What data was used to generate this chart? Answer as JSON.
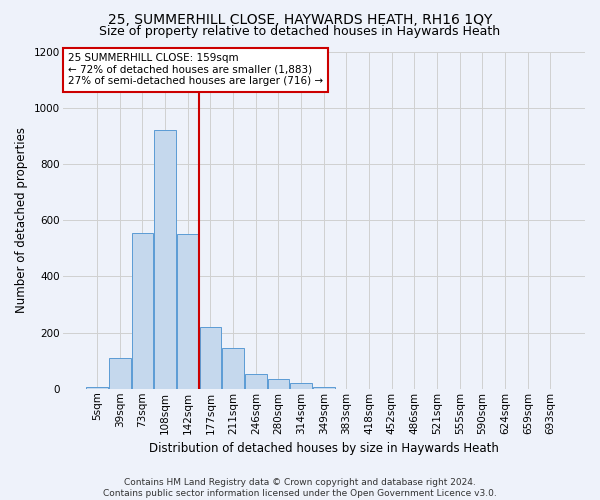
{
  "title": "25, SUMMERHILL CLOSE, HAYWARDS HEATH, RH16 1QY",
  "subtitle": "Size of property relative to detached houses in Haywards Heath",
  "xlabel": "Distribution of detached houses by size in Haywards Heath",
  "ylabel": "Number of detached properties",
  "footer_line1": "Contains HM Land Registry data © Crown copyright and database right 2024.",
  "footer_line2": "Contains public sector information licensed under the Open Government Licence v3.0.",
  "bar_labels": [
    "5sqm",
    "39sqm",
    "73sqm",
    "108sqm",
    "142sqm",
    "177sqm",
    "211sqm",
    "246sqm",
    "280sqm",
    "314sqm",
    "349sqm",
    "383sqm",
    "418sqm",
    "452sqm",
    "486sqm",
    "521sqm",
    "555sqm",
    "590sqm",
    "624sqm",
    "659sqm",
    "693sqm"
  ],
  "bar_values": [
    5,
    108,
    555,
    920,
    550,
    220,
    145,
    52,
    33,
    22,
    8,
    0,
    0,
    0,
    0,
    0,
    0,
    0,
    0,
    0,
    0
  ],
  "bar_color": "#c5d8ed",
  "bar_edge_color": "#5b9bd5",
  "vline_x_index": 4.5,
  "vline_color": "#cc0000",
  "annotation_text": "25 SUMMERHILL CLOSE: 159sqm\n← 72% of detached houses are smaller (1,883)\n27% of semi-detached houses are larger (716) →",
  "annotation_box_color": "#ffffff",
  "annotation_box_edge": "#cc0000",
  "ylim": [
    0,
    1200
  ],
  "yticks": [
    0,
    200,
    400,
    600,
    800,
    1000,
    1200
  ],
  "grid_color": "#d0d0d0",
  "background_color": "#eef2fa",
  "title_fontsize": 10,
  "subtitle_fontsize": 9,
  "axis_label_fontsize": 8.5,
  "tick_fontsize": 7.5,
  "footer_fontsize": 6.5
}
